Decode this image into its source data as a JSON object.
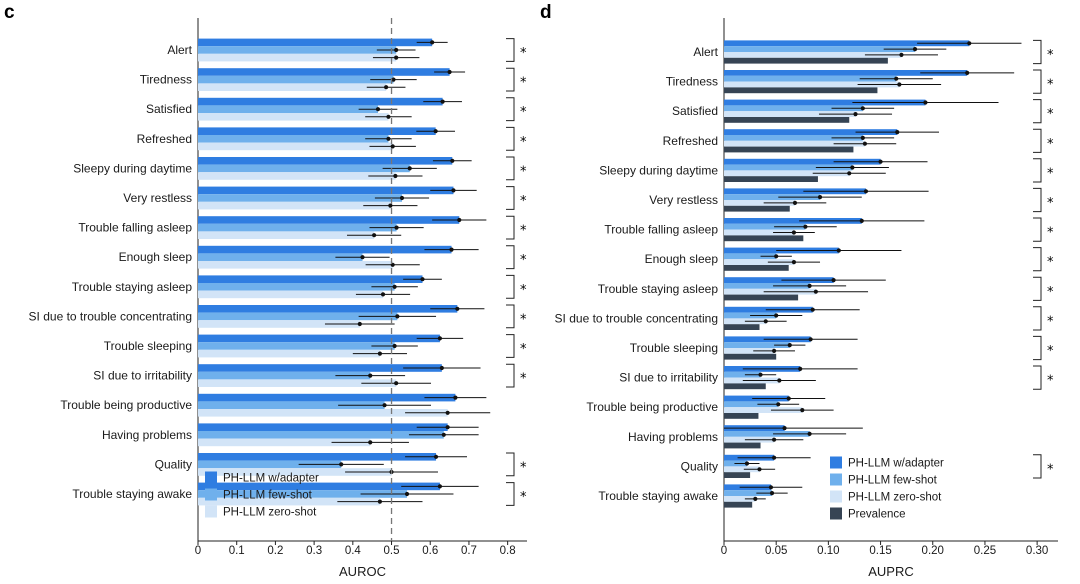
{
  "colors": {
    "adapter": "#2f7de1",
    "few_shot": "#6fb0ec",
    "zero_shot": "#d2e4f7",
    "prevalence": "#364454",
    "error": "#111111"
  },
  "chart_data": [
    {
      "panel": "c",
      "type": "bar",
      "orientation": "horizontal",
      "xlabel": "AUROC",
      "xlim": [
        0,
        0.85
      ],
      "xticks": [
        0,
        0.1,
        0.2,
        0.3,
        0.4,
        0.5,
        0.6,
        0.7,
        0.8
      ],
      "xtick_labels": [
        "0",
        "0.1",
        "0.2",
        "0.3",
        "0.4",
        "0.5",
        "0.6",
        "0.7",
        "0.8"
      ],
      "reference_line": 0.5,
      "legend_position": "bottom-left",
      "categories": [
        "Alert",
        "Tiredness",
        "Satisfied",
        "Refreshed",
        "Sleepy during daytime",
        "Very restless",
        "Trouble falling asleep",
        "Enough sleep",
        "Trouble staying asleep",
        "SI due to trouble concentrating",
        "Trouble sleeping",
        "SI due to irritability",
        "Trouble being productive",
        "Having problems",
        "Quality",
        "Trouble staying awake"
      ],
      "significant": [
        true,
        true,
        true,
        true,
        true,
        true,
        true,
        true,
        true,
        true,
        true,
        true,
        false,
        false,
        true,
        true
      ],
      "series": [
        {
          "name": "PH-LLM w/adapter",
          "color_key": "adapter",
          "values": [
            0.605,
            0.65,
            0.632,
            0.614,
            0.657,
            0.66,
            0.675,
            0.655,
            0.58,
            0.67,
            0.625,
            0.63,
            0.665,
            0.645,
            0.615,
            0.625
          ],
          "err": [
            0.04,
            0.04,
            0.05,
            0.05,
            0.05,
            0.06,
            0.07,
            0.07,
            0.05,
            0.07,
            0.06,
            0.1,
            0.08,
            0.08,
            0.08,
            0.1
          ]
        },
        {
          "name": "PH-LLM few-shot",
          "color_key": "few_shot",
          "values": [
            0.512,
            0.505,
            0.465,
            0.492,
            0.547,
            0.527,
            0.513,
            0.425,
            0.508,
            0.515,
            0.508,
            0.445,
            0.482,
            0.635,
            0.37,
            0.54
          ],
          "err": [
            0.05,
            0.06,
            0.05,
            0.06,
            0.07,
            0.07,
            0.07,
            0.07,
            0.06,
            0.1,
            0.06,
            0.09,
            0.12,
            0.09,
            0.11,
            0.12
          ]
        },
        {
          "name": "PH-LLM zero-shot",
          "color_key": "zero_shot",
          "values": [
            0.512,
            0.486,
            0.492,
            0.503,
            0.51,
            0.497,
            0.455,
            0.503,
            0.478,
            0.418,
            0.47,
            0.512,
            0.645,
            0.445,
            0.5,
            0.47
          ],
          "err": [
            0.06,
            0.05,
            0.06,
            0.06,
            0.07,
            0.07,
            0.07,
            0.07,
            0.07,
            0.09,
            0.07,
            0.09,
            0.11,
            0.1,
            0.12,
            0.11
          ]
        }
      ]
    },
    {
      "panel": "d",
      "type": "bar",
      "orientation": "horizontal",
      "xlabel": "AUPRC",
      "xlim": [
        0,
        0.32
      ],
      "xticks": [
        0,
        0.05,
        0.1,
        0.15,
        0.2,
        0.25,
        0.3
      ],
      "xtick_labels": [
        "0",
        "0.05",
        "0.10",
        "0.15",
        "0.20",
        "0.25",
        "0.30"
      ],
      "legend_position": "bottom-right",
      "categories": [
        "Alert",
        "Tiredness",
        "Satisfied",
        "Refreshed",
        "Sleepy during daytime",
        "Very restless",
        "Trouble falling asleep",
        "Enough sleep",
        "Trouble staying asleep",
        "SI due to trouble concentrating",
        "Trouble sleeping",
        "SI due to irritability",
        "Trouble being productive",
        "Having problems",
        "Quality",
        "Trouble staying awake"
      ],
      "significant": [
        true,
        true,
        true,
        true,
        true,
        true,
        true,
        true,
        true,
        true,
        true,
        true,
        false,
        false,
        true,
        false
      ],
      "series": [
        {
          "name": "PH-LLM w/adapter",
          "color_key": "adapter",
          "values": [
            0.235,
            0.233,
            0.193,
            0.166,
            0.15,
            0.136,
            0.132,
            0.11,
            0.105,
            0.085,
            0.083,
            0.073,
            0.062,
            0.058,
            0.048,
            0.045
          ],
          "err": [
            0.05,
            0.045,
            0.07,
            0.04,
            0.045,
            0.06,
            0.06,
            0.06,
            0.05,
            0.045,
            0.045,
            0.055,
            0.035,
            0.075,
            0.035,
            0.03
          ]
        },
        {
          "name": "PH-LLM few-shot",
          "color_key": "few_shot",
          "values": [
            0.183,
            0.165,
            0.133,
            0.133,
            0.123,
            0.092,
            0.078,
            0.05,
            0.082,
            0.05,
            0.063,
            0.035,
            0.052,
            0.082,
            0.022,
            0.046
          ],
          "err": [
            0.03,
            0.035,
            0.03,
            0.03,
            0.035,
            0.04,
            0.03,
            0.015,
            0.035,
            0.025,
            0.015,
            0.015,
            0.02,
            0.035,
            0.012,
            0.015
          ]
        },
        {
          "name": "PH-LLM zero-shot",
          "color_key": "zero_shot",
          "values": [
            0.17,
            0.168,
            0.126,
            0.135,
            0.12,
            0.068,
            0.067,
            0.067,
            0.088,
            0.04,
            0.048,
            0.053,
            0.075,
            0.048,
            0.034,
            0.03
          ],
          "err": [
            0.035,
            0.04,
            0.035,
            0.03,
            0.035,
            0.03,
            0.02,
            0.025,
            0.05,
            0.02,
            0.02,
            0.035,
            0.03,
            0.028,
            0.015,
            0.01
          ]
        },
        {
          "name": "Prevalence",
          "color_key": "prevalence",
          "values": [
            0.157,
            0.147,
            0.12,
            0.124,
            0.09,
            0.063,
            0.076,
            0.062,
            0.071,
            0.034,
            0.05,
            0.04,
            0.033,
            0.035,
            0.025,
            0.027
          ],
          "err": [
            0,
            0,
            0,
            0,
            0,
            0,
            0,
            0,
            0,
            0,
            0,
            0,
            0,
            0,
            0,
            0
          ]
        }
      ]
    }
  ]
}
